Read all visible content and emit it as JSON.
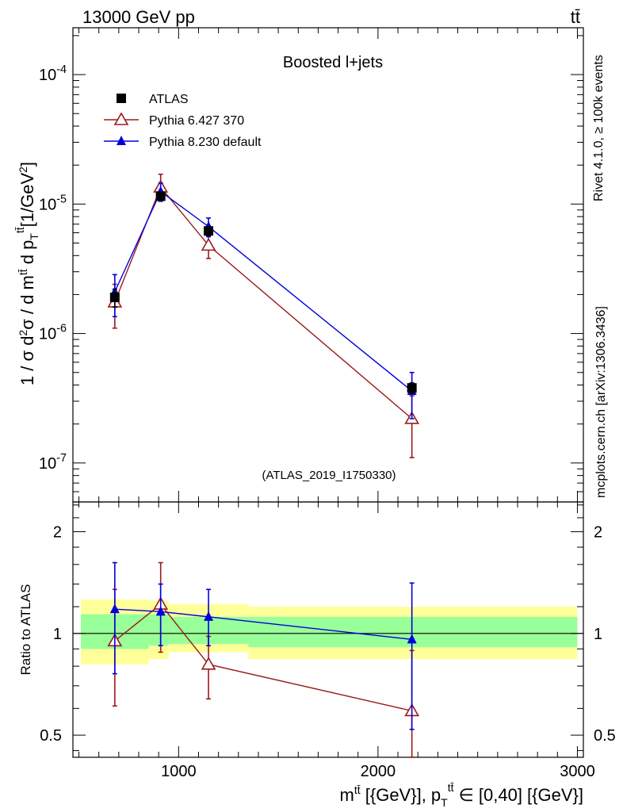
{
  "header": {
    "beam_label": "13000 GeV pp",
    "process_label": "tt̄",
    "side_label_top": "Rivet 4.1.0, ≥ 100k events",
    "side_label_bottom": "mcplots.cern.ch [arXiv:1306.3436]"
  },
  "chart_data": [
    {
      "panel": "main",
      "type": "scatter",
      "title": "Boosted l+jets",
      "watermark": "(ATLAS_2019_I1750330)",
      "ylabel": "1 / σ d²σ / d m^tt̄ d p_T^tt̄ [1/GeV²]",
      "yscale": "log",
      "ylim": [
        5e-08,
        0.00023
      ],
      "xlim": [
        470,
        3030
      ],
      "ytick_labels": [
        "10^-7",
        "10^-6",
        "10^-5",
        "10^-4"
      ],
      "legend_position": "top-left",
      "series": [
        {
          "name": "ATLAS",
          "color": "#000000",
          "marker": "square",
          "x": [
            680,
            910,
            1150,
            2170
          ],
          "y": [
            1.9e-06,
            1.15e-05,
            6.2e-06,
            3.8e-07
          ],
          "yerr_low": [
            3e-07,
            8e-07,
            5e-07,
            3.5e-08
          ],
          "yerr_high": [
            3e-07,
            8e-07,
            5e-07,
            3.5e-08
          ]
        },
        {
          "name": "Pythia 6.427 370",
          "color": "#9b1b1b",
          "marker": "open-triangle",
          "x": [
            680,
            910,
            1150,
            2170
          ],
          "y": [
            1.75e-06,
            1.35e-05,
            4.8e-06,
            2.2e-07
          ],
          "yerr_low": [
            6.5e-07,
            2.5e-06,
            1e-06,
            1.1e-07
          ],
          "yerr_high": [
            6.5e-07,
            3.5e-06,
            1e-06,
            1.1e-07
          ]
        },
        {
          "name": "Pythia 8.230 default",
          "color": "#0000dd",
          "marker": "filled-triangle",
          "x": [
            680,
            910,
            1150,
            2170
          ],
          "y": [
            2.1e-06,
            1.25e-05,
            6.7e-06,
            3.6e-07
          ],
          "yerr_low": [
            7.5e-07,
            2e-06,
            1.1e-06,
            1.4e-07
          ],
          "yerr_high": [
            7.5e-07,
            2e-06,
            1.1e-06,
            1.4e-07
          ]
        }
      ]
    },
    {
      "panel": "ratio",
      "type": "scatter",
      "ylabel": "Ratio to ATLAS",
      "xlabel": "m^tt̄ [{GeV}], p_T^tt̄ ∈ [0,40] [{GeV}]",
      "yscale": "log",
      "ylim": [
        0.43,
        2.45
      ],
      "xlim": [
        470,
        3030
      ],
      "x_ticks": [
        1000,
        2000,
        3000
      ],
      "x_tick_labels": [
        "1000",
        "2000",
        "3000"
      ],
      "y_ticks": [
        0.5,
        1,
        2
      ],
      "y_tick_labels": [
        "0.5",
        "1",
        "2"
      ],
      "bands": {
        "bin_edges": [
          510,
          850,
          950,
          1350,
          3000
        ],
        "outer_low": [
          0.81,
          0.84,
          0.88,
          0.84
        ],
        "outer_high": [
          1.26,
          1.25,
          1.22,
          1.2
        ],
        "inner_low": [
          0.9,
          0.92,
          0.93,
          0.91
        ],
        "inner_high": [
          1.14,
          1.14,
          1.12,
          1.12
        ],
        "outer_color": "#ffff99",
        "inner_color": "#99ff99"
      },
      "series": [
        {
          "name": "Pythia 6.427 370",
          "color": "#9b1b1b",
          "marker": "open-triangle",
          "x": [
            680,
            910,
            1150,
            2170
          ],
          "y": [
            0.95,
            1.22,
            0.81,
            0.59
          ],
          "yerr_low": [
            0.34,
            0.34,
            0.17,
            0.28
          ],
          "yerr_high": [
            0.4,
            0.4,
            0.17,
            0.3
          ]
        },
        {
          "name": "Pythia 8.230 default",
          "color": "#0000dd",
          "marker": "filled-triangle",
          "x": [
            680,
            910,
            1150,
            2170
          ],
          "y": [
            1.18,
            1.16,
            1.12,
            0.96
          ],
          "yerr_low": [
            0.42,
            0.24,
            0.2,
            0.44
          ],
          "yerr_high": [
            0.44,
            0.24,
            0.23,
            0.45
          ]
        }
      ]
    }
  ]
}
